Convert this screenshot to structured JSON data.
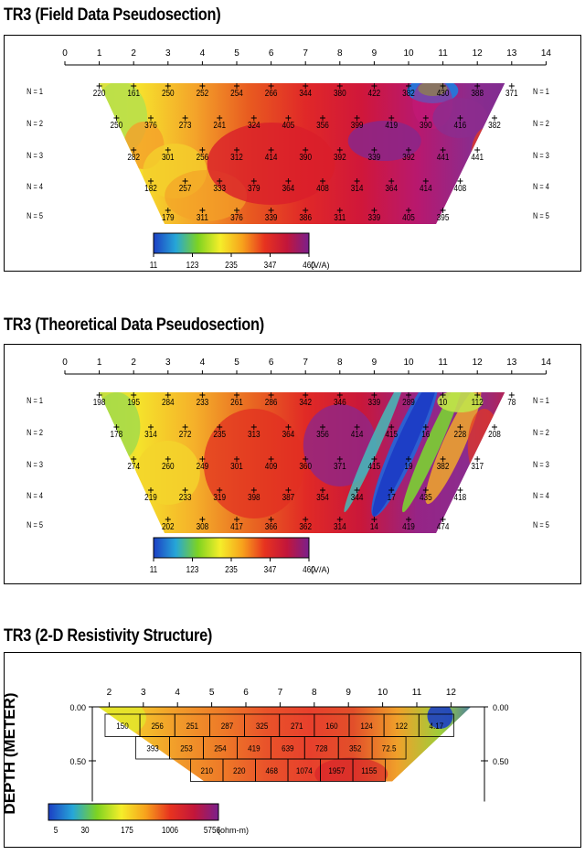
{
  "panels": [
    {
      "title": "TR3 (Field Data Pseudosection)",
      "x_ticks": [
        "0",
        "1",
        "2",
        "3",
        "4",
        "5",
        "6",
        "7",
        "8",
        "9",
        "10",
        "11",
        "12",
        "13",
        "14"
      ],
      "level_labels": [
        "N = 1",
        "N = 2",
        "N = 3",
        "N = 4",
        "N = 5"
      ],
      "rows": [
        [
          "220",
          "161",
          "250",
          "252",
          "254",
          "266",
          "344",
          "380",
          "422",
          "382",
          "430",
          "388",
          "371"
        ],
        [
          "250",
          "376",
          "273",
          "241",
          "324",
          "405",
          "356",
          "399",
          "419",
          "390",
          "416",
          "382"
        ],
        [
          "282",
          "301",
          "256",
          "312",
          "414",
          "390",
          "392",
          "339",
          "392",
          "441",
          "441"
        ],
        [
          "182",
          "257",
          "333",
          "379",
          "364",
          "408",
          "314",
          "364",
          "414",
          "408"
        ],
        [
          "179",
          "311",
          "376",
          "339",
          "386",
          "311",
          "339",
          "405",
          "395"
        ]
      ],
      "colorbar_ticks": [
        "11",
        "123",
        "235",
        "347",
        "460"
      ],
      "colorbar_unit": "(V/A)"
    },
    {
      "title": "TR3 (Theoretical Data Pseudosection)",
      "x_ticks": [
        "0",
        "1",
        "2",
        "3",
        "4",
        "5",
        "6",
        "7",
        "8",
        "9",
        "10",
        "11",
        "12",
        "13",
        "14"
      ],
      "level_labels": [
        "N = 1",
        "N = 2",
        "N = 3",
        "N = 4",
        "N = 5"
      ],
      "rows": [
        [
          "198",
          "195",
          "284",
          "233",
          "261",
          "286",
          "342",
          "346",
          "339",
          "289",
          "10",
          "112",
          "78"
        ],
        [
          "178",
          "314",
          "272",
          "235",
          "313",
          "364",
          "356",
          "414",
          "415",
          "16",
          "228",
          "208"
        ],
        [
          "274",
          "260",
          "249",
          "301",
          "409",
          "360",
          "371",
          "415",
          "19",
          "382",
          "317"
        ],
        [
          "219",
          "233",
          "319",
          "398",
          "387",
          "354",
          "344",
          "17",
          "435",
          "418"
        ],
        [
          "202",
          "308",
          "417",
          "366",
          "362",
          "314",
          "14",
          "419",
          "474"
        ]
      ],
      "colorbar_ticks": [
        "11",
        "123",
        "235",
        "347",
        "460"
      ],
      "colorbar_unit": "(V/A)"
    },
    {
      "title": "TR3 (2-D Resistivity Structure)",
      "x_ticks": [
        "2",
        "3",
        "4",
        "5",
        "6",
        "7",
        "8",
        "9",
        "10",
        "11",
        "12"
      ],
      "y_axis_label": "DEPTH (METER)",
      "depth_ticks": [
        "0.00",
        "0.50"
      ],
      "rows": [
        [
          "150",
          "256",
          "251",
          "287",
          "325",
          "271",
          "160",
          "124",
          "122",
          "4.17"
        ],
        [
          "393",
          "253",
          "254",
          "419",
          "639",
          "728",
          "352",
          "72.5"
        ],
        [
          "210",
          "220",
          "468",
          "1074",
          "1957",
          "1155"
        ]
      ],
      "colorbar_ticks": [
        "5",
        "30",
        "175",
        "1006",
        "5756"
      ],
      "colorbar_unit": "(ohm-m)"
    }
  ]
}
